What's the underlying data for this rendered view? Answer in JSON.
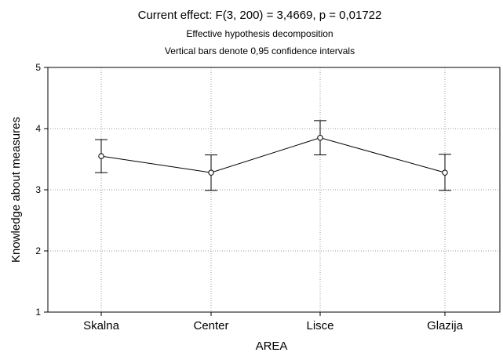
{
  "chart_data": {
    "type": "line",
    "title": "Current effect: F(3, 200) = 3,4669, p = 0,01722",
    "subtitle": [
      "Effective hypothesis decomposition",
      "Vertical bars denote 0,95 confidence intervals"
    ],
    "xlabel": "AREA",
    "ylabel": "Knowledge about measures",
    "categories": [
      "Skalna",
      "Center",
      "Lisce",
      "Glazija"
    ],
    "values": [
      3.55,
      3.28,
      3.85,
      3.28
    ],
    "ci_lower": [
      3.28,
      2.99,
      3.57,
      2.99
    ],
    "ci_upper": [
      3.82,
      3.57,
      4.13,
      3.58
    ],
    "ylim": [
      1,
      5
    ],
    "yticks": [
      "1",
      "2",
      "3",
      "4",
      "5"
    ],
    "grid": true,
    "colors": {
      "line": "#000000",
      "grid": "#9a9a9a",
      "marker_fill": "#ffffff"
    }
  }
}
